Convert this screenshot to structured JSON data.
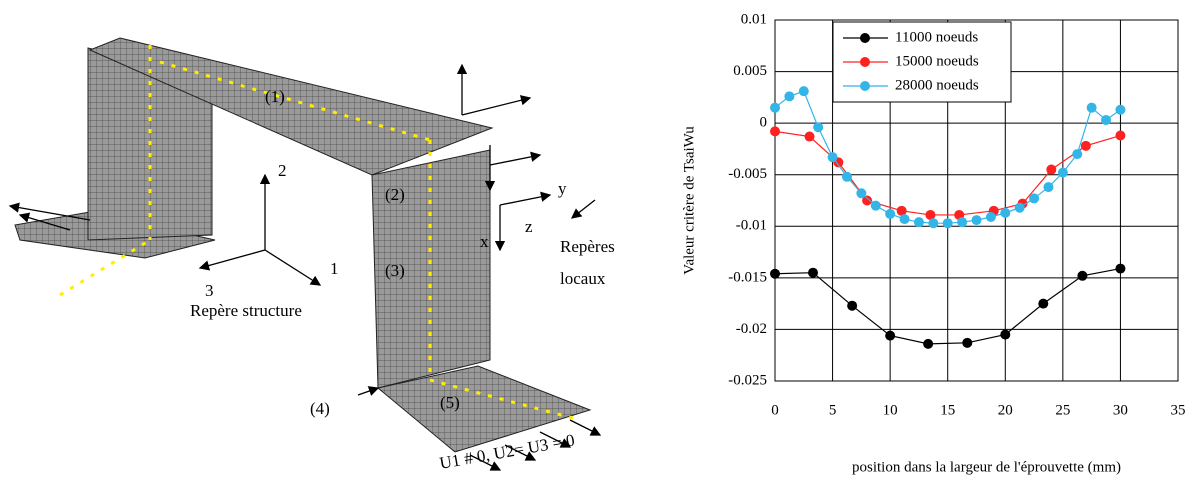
{
  "diagram": {
    "labels": [
      "(1)",
      "(2)",
      "(3)",
      "(4)",
      "(5)",
      "2",
      "1",
      "3",
      "Repère structure",
      "y",
      "z",
      "x",
      "Repères",
      "locaux",
      "U1 # 0, U2= U3 = 0"
    ]
  },
  "chart_data": {
    "type": "line",
    "y_label": "Valeur critère de TsaiWu",
    "x_label": "position dans la largeur de l'éprouvette (mm)",
    "xlim": [
      0,
      35
    ],
    "xticks": [
      0,
      5,
      10,
      15,
      20,
      25,
      30,
      35
    ],
    "ylim": [
      -0.025,
      0.01
    ],
    "yticks": [
      -0.025,
      -0.02,
      -0.015,
      -0.01,
      -0.005,
      0,
      0.005,
      0.01
    ],
    "grid": true,
    "legend": "top",
    "series": [
      {
        "name": "11000 noeuds",
        "color": "#000000",
        "x": [
          0,
          3.3,
          6.7,
          10,
          13.3,
          16.7,
          20,
          23.3,
          26.7,
          30
        ],
        "values": [
          -0.0146,
          -0.0145,
          -0.0177,
          -0.0206,
          -0.0214,
          -0.0213,
          -0.0205,
          -0.0175,
          -0.0148,
          -0.0141
        ]
      },
      {
        "name": "15000 noeuds",
        "color": "#ff2020",
        "x": [
          0,
          3,
          5.5,
          8,
          11,
          13.5,
          16,
          19,
          21.5,
          24,
          27,
          30
        ],
        "values": [
          -0.0008,
          -0.0013,
          -0.0038,
          -0.0075,
          -0.0085,
          -0.0089,
          -0.0089,
          -0.0085,
          -0.0078,
          -0.0045,
          -0.0022,
          -0.0012
        ]
      },
      {
        "name": "28000 noeuds",
        "color": "#33b5e8",
        "x": [
          0,
          1.25,
          2.5,
          3.75,
          5,
          6.25,
          7.5,
          8.75,
          10,
          11.25,
          12.5,
          13.75,
          15,
          16.25,
          17.5,
          18.75,
          20,
          21.25,
          22.5,
          23.75,
          25,
          26.25,
          27.5,
          28.75,
          30
        ],
        "values": [
          0.0015,
          0.0026,
          0.0031,
          -0.0004,
          -0.0033,
          -0.0052,
          -0.0068,
          -0.008,
          -0.0088,
          -0.0093,
          -0.0096,
          -0.0097,
          -0.0097,
          -0.0096,
          -0.0094,
          -0.0091,
          -0.0087,
          -0.0082,
          -0.0073,
          -0.0062,
          -0.0048,
          -0.003,
          0.0015,
          0.0003,
          0.0013
        ]
      }
    ]
  }
}
